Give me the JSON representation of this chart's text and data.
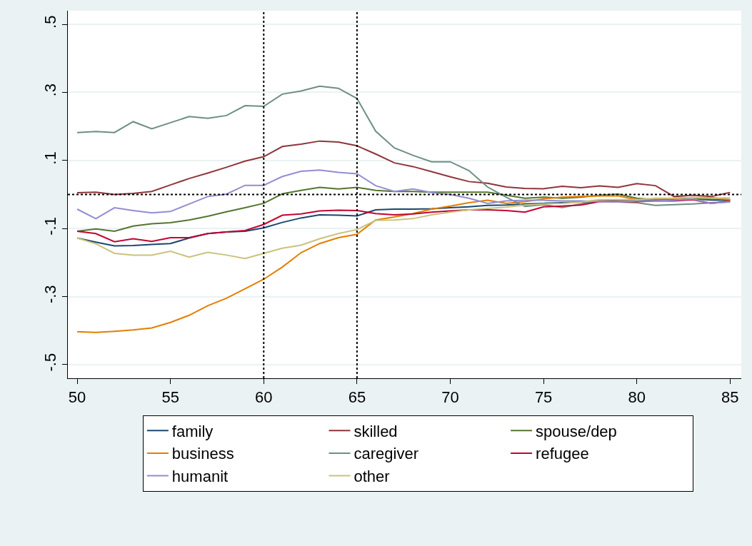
{
  "chart_data": {
    "type": "line",
    "x": [
      50,
      51,
      52,
      53,
      54,
      55,
      56,
      57,
      58,
      59,
      60,
      61,
      62,
      63,
      64,
      65,
      66,
      67,
      68,
      69,
      70,
      71,
      72,
      73,
      74,
      75,
      76,
      77,
      78,
      79,
      80,
      81,
      82,
      83,
      84,
      85
    ],
    "series": [
      {
        "name": "family",
        "color": "#1a476f",
        "values": [
          -0.128,
          -0.14,
          -0.151,
          -0.15,
          -0.147,
          -0.144,
          -0.128,
          -0.115,
          -0.11,
          -0.108,
          -0.098,
          -0.082,
          -0.069,
          -0.06,
          -0.061,
          -0.063,
          -0.045,
          -0.043,
          -0.043,
          -0.042,
          -0.039,
          -0.036,
          -0.032,
          -0.031,
          -0.028,
          -0.026,
          -0.024,
          -0.022,
          -0.019,
          -0.017,
          -0.017,
          -0.015,
          -0.015,
          -0.013,
          -0.016,
          -0.017
        ]
      },
      {
        "name": "skilled",
        "color": "#90353b",
        "values": [
          0.005,
          0.007,
          0.0,
          0.003,
          0.009,
          0.028,
          0.047,
          0.063,
          0.08,
          0.098,
          0.111,
          0.141,
          0.148,
          0.157,
          0.154,
          0.143,
          0.119,
          0.093,
          0.082,
          0.067,
          0.052,
          0.038,
          0.033,
          0.022,
          0.018,
          0.017,
          0.024,
          0.02,
          0.025,
          0.021,
          0.032,
          0.026,
          -0.006,
          -0.002,
          -0.006,
          0.006
        ]
      },
      {
        "name": "spouse/dep",
        "color": "#55752f",
        "values": [
          -0.108,
          -0.101,
          -0.108,
          -0.093,
          -0.086,
          -0.083,
          -0.075,
          -0.064,
          -0.051,
          -0.039,
          -0.026,
          0.002,
          0.012,
          0.021,
          0.016,
          0.021,
          0.012,
          0.009,
          0.009,
          0.007,
          0.007,
          0.007,
          0.007,
          -0.002,
          -0.011,
          -0.008,
          -0.011,
          -0.008,
          -0.002,
          0.001,
          -0.011,
          -0.015,
          -0.015,
          -0.013,
          -0.013,
          -0.015
        ]
      },
      {
        "name": "business",
        "color": "#e37e00",
        "values": [
          -0.403,
          -0.405,
          -0.402,
          -0.398,
          -0.392,
          -0.376,
          -0.355,
          -0.327,
          -0.305,
          -0.277,
          -0.249,
          -0.213,
          -0.171,
          -0.144,
          -0.127,
          -0.117,
          -0.075,
          -0.066,
          -0.056,
          -0.043,
          -0.034,
          -0.024,
          -0.017,
          -0.026,
          -0.021,
          -0.013,
          -0.008,
          -0.006,
          -0.004,
          -0.004,
          -0.015,
          -0.013,
          -0.011,
          -0.009,
          -0.009,
          -0.016
        ]
      },
      {
        "name": "caregiver",
        "color": "#6e8e84",
        "values": [
          0.182,
          0.185,
          0.182,
          0.214,
          0.193,
          0.211,
          0.229,
          0.224,
          0.232,
          0.261,
          0.259,
          0.295,
          0.304,
          0.318,
          0.312,
          0.282,
          0.186,
          0.137,
          0.115,
          0.096,
          0.096,
          0.07,
          0.022,
          -0.008,
          -0.035,
          -0.03,
          -0.038,
          -0.028,
          -0.018,
          -0.022,
          -0.024,
          -0.032,
          -0.03,
          -0.028,
          -0.024,
          -0.022
        ]
      },
      {
        "name": "refugee",
        "color": "#c10534",
        "values": [
          -0.108,
          -0.115,
          -0.139,
          -0.13,
          -0.138,
          -0.127,
          -0.127,
          -0.115,
          -0.11,
          -0.106,
          -0.088,
          -0.061,
          -0.057,
          -0.048,
          -0.046,
          -0.047,
          -0.056,
          -0.06,
          -0.057,
          -0.052,
          -0.048,
          -0.045,
          -0.045,
          -0.047,
          -0.052,
          -0.036,
          -0.034,
          -0.031,
          -0.021,
          -0.021,
          -0.021,
          -0.019,
          -0.019,
          -0.015,
          -0.026,
          -0.019
        ]
      },
      {
        "name": "humanit",
        "color": "#938dd2",
        "values": [
          -0.043,
          -0.071,
          -0.039,
          -0.047,
          -0.054,
          -0.05,
          -0.028,
          -0.006,
          0.001,
          0.027,
          0.027,
          0.053,
          0.068,
          0.072,
          0.065,
          0.061,
          0.026,
          0.009,
          0.016,
          0.006,
          0.0,
          -0.011,
          -0.026,
          -0.019,
          -0.017,
          -0.017,
          -0.019,
          -0.019,
          -0.021,
          -0.022,
          -0.019,
          -0.019,
          -0.017,
          -0.013,
          -0.026,
          -0.021
        ]
      },
      {
        "name": "other",
        "color": "#cac27e",
        "values": [
          -0.128,
          -0.145,
          -0.173,
          -0.178,
          -0.178,
          -0.167,
          -0.184,
          -0.17,
          -0.178,
          -0.188,
          -0.173,
          -0.158,
          -0.149,
          -0.13,
          -0.115,
          -0.103,
          -0.076,
          -0.075,
          -0.071,
          -0.06,
          -0.052,
          -0.045,
          -0.041,
          -0.037,
          -0.031,
          -0.028,
          -0.026,
          -0.022,
          -0.015,
          -0.015,
          -0.015,
          -0.011,
          -0.011,
          -0.009,
          -0.011,
          -0.01
        ]
      }
    ],
    "xlim": [
      49.5,
      85.6
    ],
    "xticks": [
      50,
      55,
      60,
      65,
      70,
      75,
      80,
      85
    ],
    "ylim": [
      -0.54,
      0.54
    ],
    "yticks": [
      {
        "value": 0.5,
        "label": ".5"
      },
      {
        "value": 0.3,
        "label": ".3"
      },
      {
        "value": 0.1,
        "label": ".1"
      },
      {
        "value": -0.1,
        "label": "-.1"
      },
      {
        "value": -0.3,
        "label": "-.3"
      },
      {
        "value": -0.5,
        "label": "-.5"
      }
    ],
    "ref_lines": [
      {
        "axis": "x",
        "value": 60,
        "color": "#000000",
        "line_style": "dotted"
      },
      {
        "axis": "x",
        "value": 65,
        "color": "#000000",
        "line_style": "dotted"
      },
      {
        "axis": "y",
        "value": 0,
        "color": "#000000",
        "line_style": "dotted"
      }
    ],
    "grid": "y",
    "legend": "bottom",
    "marker": "none",
    "line_style": "solid"
  }
}
